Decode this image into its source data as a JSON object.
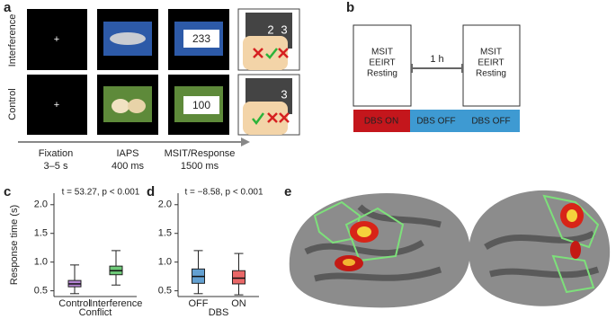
{
  "panel_a": {
    "letter": "a",
    "rows": [
      "Interference",
      "Control"
    ],
    "numbers": [
      "233",
      "100"
    ],
    "keys_interference": [
      "2",
      "3"
    ],
    "keys_control": [
      "3"
    ],
    "timeline": [
      {
        "label": "Fixation",
        "duration": "3–5 s"
      },
      {
        "label": "IAPS",
        "duration": "400 ms"
      },
      {
        "label": "MSIT/Response",
        "duration": "1500 ms"
      }
    ]
  },
  "panel_b": {
    "letter": "b",
    "sessions": [
      {
        "tasks": [
          "MSIT",
          "EEIRT",
          "Resting"
        ]
      },
      {
        "tasks": [
          "MSIT",
          "EEIRT",
          "Resting"
        ]
      }
    ],
    "interval": "1 h",
    "conditions": [
      "DBS ON",
      "DBS OFF",
      "DBS OFF"
    ]
  },
  "chart_data": [
    {
      "type": "box",
      "panel": "c",
      "title": "t = 53.27, p < 0.001",
      "ylabel": "Response time (s)",
      "xlabel": "Conflict",
      "categories": [
        "Control",
        "Interference"
      ],
      "colors": [
        "#9b5bc4",
        "#3cb54a"
      ],
      "boxes": [
        {
          "whislo": 0.45,
          "q1": 0.57,
          "med": 0.62,
          "q3": 0.68,
          "whishi": 0.95
        },
        {
          "whislo": 0.6,
          "q1": 0.78,
          "med": 0.85,
          "q3": 0.93,
          "whishi": 1.2
        }
      ],
      "ylim": [
        0.4,
        2.2
      ],
      "yticks": [
        0.5,
        {
          "value": 1,
          "label": "1.0"
        },
        1.5,
        {
          "value": 2,
          "label": "2.0"
        }
      ]
    },
    {
      "type": "box",
      "panel": "d",
      "title": "t = −8.58, p < 0.001",
      "xlabel": "DBS",
      "categories": [
        "OFF",
        "ON"
      ],
      "colors": [
        "#2f80c2",
        "#e23434"
      ],
      "boxes": [
        {
          "whislo": 0.45,
          "q1": 0.63,
          "med": 0.75,
          "q3": 0.88,
          "whishi": 1.2
        },
        {
          "whislo": 0.43,
          "q1": 0.62,
          "med": 0.72,
          "q3": 0.85,
          "whishi": 1.15
        }
      ],
      "ylim": [
        0.4,
        2.2
      ],
      "yticks": [
        0.5,
        {
          "value": 1,
          "label": "1.0"
        },
        1.5,
        {
          "value": 2,
          "label": "2.0"
        }
      ]
    }
  ],
  "panel_e": {
    "letter": "e"
  }
}
